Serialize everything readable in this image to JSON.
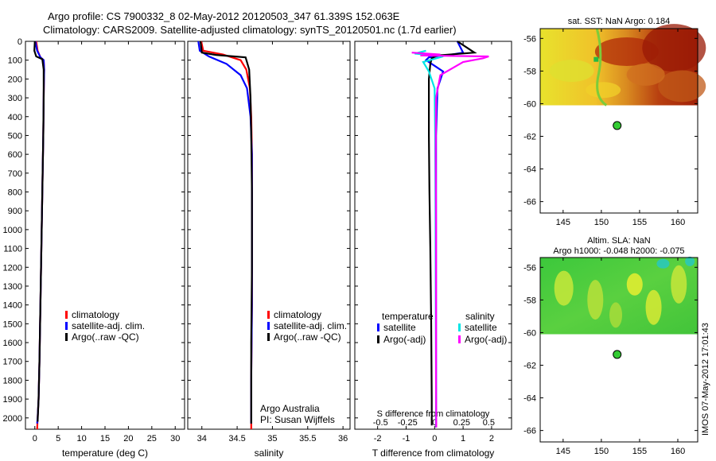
{
  "header": {
    "line1": "Argo profile: CS 7900332_8 02-May-2012 20120503_347 61.339S 152.063E",
    "line2": "Climatology: CARS2009. Satellite-adjusted climatology: synTS_20120501.nc (1.7d earlier)"
  },
  "depth_ticks": [
    0,
    100,
    200,
    300,
    400,
    500,
    600,
    700,
    800,
    900,
    1000,
    1100,
    1200,
    1300,
    1400,
    1500,
    1600,
    1700,
    1800,
    1900,
    2000
  ],
  "colors": {
    "climatology": "#ff0000",
    "satellite": "#0000ff",
    "argo": "#000000",
    "sal_satellite": "#00e5e5",
    "sal_argo": "#ff00ff",
    "float_marker": "#33cc33"
  },
  "chart_data": [
    {
      "id": "temperature",
      "type": "line",
      "xlabel": "temperature (deg C)",
      "ylabel": "",
      "xlim": [
        -2,
        32
      ],
      "ylim": [
        2060,
        0
      ],
      "xticks": [
        0,
        5,
        10,
        15,
        20,
        25,
        30
      ],
      "legend": [
        "climatology",
        "satellite-adj. clim.",
        "Argo(..raw -QC)"
      ],
      "legend_location": "lower-center",
      "series": [
        {
          "name": "climatology",
          "color": "#ff0000",
          "x": [
            0.3,
            0.6,
            1.2,
            1.9,
            2.0,
            1.9,
            1.8,
            1.6,
            1.4,
            1.2,
            1.0,
            0.8,
            0.6,
            0.5
          ],
          "y": [
            0,
            50,
            85,
            100,
            150,
            300,
            500,
            800,
            1100,
            1400,
            1700,
            1900,
            2000,
            2060
          ]
        },
        {
          "name": "satellite-adj. clim.",
          "color": "#0000ff",
          "x": [
            0.1,
            0.5,
            1.2,
            1.9,
            2.0,
            1.9,
            1.8,
            1.6,
            1.4,
            1.2,
            1.0,
            0.8,
            0.6,
            0.5
          ],
          "y": [
            0,
            50,
            85,
            100,
            150,
            300,
            500,
            800,
            1100,
            1400,
            1700,
            1900,
            2000,
            2030
          ]
        },
        {
          "name": "Argo(..raw -QC)",
          "color": "#000000",
          "x": [
            0.0,
            -0.1,
            0.3,
            1.6,
            1.9,
            1.9,
            1.8,
            1.6,
            1.4,
            1.2,
            1.0,
            0.8,
            0.6
          ],
          "y": [
            0,
            50,
            80,
            95,
            150,
            300,
            500,
            800,
            1100,
            1400,
            1700,
            1900,
            2020
          ]
        }
      ]
    },
    {
      "id": "salinity",
      "type": "line",
      "xlabel": "salinity",
      "ylabel": "",
      "xlim": [
        33.8,
        36.1
      ],
      "ylim": [
        2060,
        0
      ],
      "xticks": [
        34,
        34.5,
        35,
        35.5,
        36
      ],
      "legend": [
        "climatology",
        "satellite-adj. clim.",
        "Argo(..raw -QC)"
      ],
      "legend_location": "lower-center",
      "annotations": [
        "Argo Australia",
        "PI: Susan Wijffels"
      ],
      "series": [
        {
          "name": "climatology",
          "color": "#ff0000",
          "x": [
            33.99,
            34.02,
            34.3,
            34.55,
            34.63,
            34.68,
            34.7,
            34.71,
            34.71,
            34.71,
            34.7,
            34.7,
            34.7
          ],
          "y": [
            0,
            50,
            70,
            100,
            150,
            250,
            400,
            600,
            1000,
            1400,
            1800,
            2000,
            2060
          ]
        },
        {
          "name": "satellite-adj. clim.",
          "color": "#0000ff",
          "x": [
            33.95,
            33.97,
            34.1,
            34.35,
            34.55,
            34.64,
            34.69,
            34.71,
            34.71,
            34.71,
            34.7,
            34.7
          ],
          "y": [
            0,
            50,
            80,
            120,
            180,
            250,
            400,
            600,
            1000,
            1400,
            1800,
            2030
          ]
        },
        {
          "name": "Argo(..raw -QC)",
          "color": "#000000",
          "x": [
            33.98,
            34.0,
            34.2,
            34.62,
            34.67,
            34.69,
            34.7,
            34.71,
            34.71,
            34.7,
            34.7
          ],
          "y": [
            0,
            60,
            72,
            85,
            150,
            300,
            500,
            800,
            1200,
            1600,
            2030
          ]
        }
      ]
    },
    {
      "id": "differences",
      "type": "line",
      "xlabel": "T difference from climatology",
      "top_label": "S difference from climatology",
      "ylabel": "",
      "xlim": [
        -2.8,
        2.7
      ],
      "ylim": [
        2060,
        0
      ],
      "xticks": [
        -2,
        -1,
        0,
        1,
        2
      ],
      "top_ticks_values": [
        -0.5,
        -0.25,
        0,
        0.25,
        0.5
      ],
      "top_ticks_pos": [
        -1.9,
        -0.95,
        0,
        0.95,
        1.9
      ],
      "legend_temperature_title": "temperature",
      "legend_salinity_title": "salinity",
      "legend": [
        "satellite",
        "Argo(-adj)",
        "satellite",
        "Argo(-adj)"
      ],
      "legend_location": "lower",
      "series": [
        {
          "name": "satellite",
          "group": "temperature",
          "color": "#0000ff",
          "x": [
            0.8,
            1.0,
            0.4,
            -0.2,
            -0.3,
            0.0,
            0.3,
            0.1,
            0.05,
            0.05,
            0.05,
            0.05,
            0.05
          ],
          "y": [
            0,
            60,
            75,
            85,
            100,
            130,
            160,
            250,
            500,
            1000,
            1500,
            1900,
            2050
          ]
        },
        {
          "name": "Argo(-adj)",
          "group": "temperature",
          "color": "#000000",
          "x": [
            0.8,
            1.4,
            0.1,
            -0.1,
            -0.15,
            -0.2,
            -0.2,
            -0.2,
            -0.18,
            -0.15,
            -0.12,
            -0.1,
            -0.1
          ],
          "y": [
            0,
            60,
            75,
            90,
            120,
            200,
            300,
            500,
            800,
            1100,
            1500,
            1900,
            2040
          ]
        },
        {
          "name": "satellite",
          "group": "salinity",
          "color": "#00e5e5",
          "x": [
            -0.3,
            -0.7,
            0.3,
            -0.4,
            -0.2,
            0.0,
            0.02,
            0.03,
            0.04,
            0.05,
            0.06
          ],
          "y": [
            50,
            65,
            80,
            110,
            160,
            250,
            500,
            900,
            1400,
            1800,
            2050
          ]
        },
        {
          "name": "Argo(-adj)",
          "group": "salinity",
          "color": "#ff00ff",
          "x": [
            -0.8,
            0.2,
            -0.5,
            1.9,
            1.7,
            1.0,
            0.2,
            0.05,
            0.04,
            0.05,
            0.05,
            0.05,
            0.06
          ],
          "y": [
            60,
            70,
            75,
            80,
            90,
            110,
            180,
            300,
            600,
            1000,
            1400,
            1800,
            2050
          ]
        }
      ]
    },
    {
      "id": "sst_map",
      "type": "heatmap",
      "title": "sat. SST: NaN Argo: 0.184",
      "xlim": [
        142,
        162.6
      ],
      "ylim": [
        -66.7,
        -55.4
      ],
      "xticks": [
        145,
        150,
        155,
        160
      ],
      "yticks": [
        -56,
        -58,
        -60,
        -62,
        -64,
        -66
      ],
      "data_extent_lat": [
        -60.1,
        -55.4
      ],
      "float_lon": 152.063,
      "float_lat": -61.339
    },
    {
      "id": "sla_map",
      "type": "heatmap",
      "title": "Altim. SLA: NaN",
      "subtitle": "Argo h1000: -0.048 h2000: -0.075",
      "xlim": [
        142,
        162.6
      ],
      "ylim": [
        -66.7,
        -55.4
      ],
      "xticks": [
        145,
        150,
        155,
        160
      ],
      "yticks": [
        -56,
        -58,
        -60,
        -62,
        -64,
        -66
      ],
      "data_extent_lat": [
        -60.1,
        -55.4
      ],
      "float_lon": 152.063,
      "float_lat": -61.339
    }
  ],
  "footer": {
    "stamp": "IMOS 07-May-2012 17:01:43"
  }
}
